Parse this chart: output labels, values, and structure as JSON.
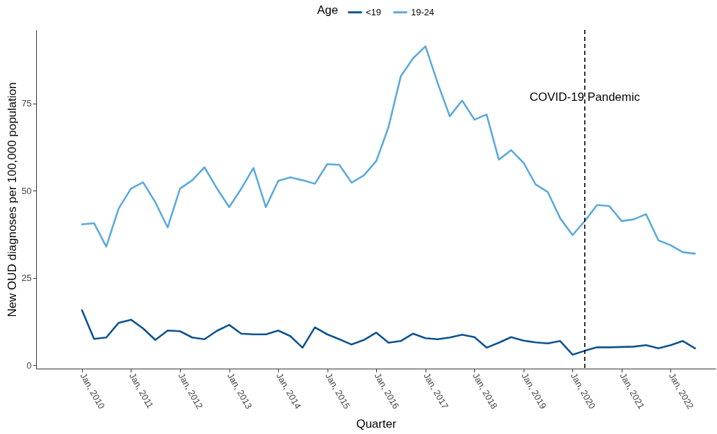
{
  "chart_data": {
    "type": "line",
    "xlabel": "Quarter",
    "ylabel": "New OUD diagnoses per 100,000 population",
    "legend_title": "Age",
    "legend": "top",
    "grid": false,
    "line_style": "solid",
    "marker": "none",
    "x": [
      "2010-01",
      "2010-04",
      "2010-07",
      "2010-10",
      "2011-01",
      "2011-04",
      "2011-07",
      "2011-10",
      "2012-01",
      "2012-04",
      "2012-07",
      "2012-10",
      "2013-01",
      "2013-04",
      "2013-07",
      "2013-10",
      "2014-01",
      "2014-04",
      "2014-07",
      "2014-10",
      "2015-01",
      "2015-04",
      "2015-07",
      "2015-10",
      "2016-01",
      "2016-04",
      "2016-07",
      "2016-10",
      "2017-01",
      "2017-04",
      "2017-07",
      "2017-10",
      "2018-01",
      "2018-04",
      "2018-07",
      "2018-10",
      "2019-01",
      "2019-04",
      "2019-07",
      "2019-10",
      "2020-01",
      "2020-04",
      "2020-07",
      "2020-10",
      "2021-01",
      "2021-04",
      "2021-07",
      "2021-10",
      "2022-01",
      "2022-04",
      "2022-07"
    ],
    "series": [
      {
        "name": "<19",
        "color": "#0c5290",
        "values": [
          15.8,
          7.6,
          8.0,
          12.2,
          13.1,
          10.6,
          7.3,
          10.0,
          9.8,
          8.0,
          7.5,
          9.9,
          11.6,
          9.1,
          8.9,
          8.9,
          10.0,
          8.4,
          5.1,
          10.9,
          8.9,
          7.5,
          6.0,
          7.3,
          9.4,
          6.5,
          7.0,
          9.1,
          7.8,
          7.5,
          8.0,
          8.8,
          8.1,
          5.1,
          6.5,
          8.1,
          7.1,
          6.6,
          6.3,
          7.0,
          3.1,
          4.2,
          5.2,
          5.2,
          5.3,
          5.4,
          5.8,
          4.9,
          5.8,
          7.0,
          4.9
        ]
      },
      {
        "name": "19-24",
        "color": "#5aa9dd",
        "values": [
          40.4,
          40.7,
          34.0,
          44.9,
          50.6,
          52.4,
          46.7,
          39.5,
          50.6,
          53.0,
          56.7,
          50.7,
          45.3,
          50.6,
          56.5,
          45.3,
          52.8,
          53.8,
          53.0,
          52.0,
          57.6,
          57.4,
          52.3,
          54.4,
          58.5,
          68.2,
          82.7,
          87.9,
          91.3,
          80.9,
          71.3,
          75.8,
          70.3,
          71.8,
          58.9,
          61.6,
          58.0,
          51.8,
          49.6,
          42.1,
          37.3,
          41.3,
          45.9,
          45.6,
          41.3,
          41.8,
          43.3,
          35.8,
          34.4,
          32.4,
          32.0
        ]
      }
    ],
    "xlim": [
      "2009-01-25",
      "2022-12-01"
    ],
    "xticks": [
      {
        "value": "2010-01",
        "label": "Jan, 2010"
      },
      {
        "value": "2011-01",
        "label": "Jan, 2011"
      },
      {
        "value": "2012-01",
        "label": "Jan, 2012"
      },
      {
        "value": "2013-01",
        "label": "Jan, 2013"
      },
      {
        "value": "2014-01",
        "label": "Jan, 2014"
      },
      {
        "value": "2015-01",
        "label": "Jan, 2015"
      },
      {
        "value": "2016-01",
        "label": "Jan, 2016"
      },
      {
        "value": "2017-01",
        "label": "Jan, 2017"
      },
      {
        "value": "2018-01",
        "label": "Jan, 2018"
      },
      {
        "value": "2019-01",
        "label": "Jan, 2019"
      },
      {
        "value": "2020-01",
        "label": "Jan, 2020"
      },
      {
        "value": "2021-01",
        "label": "Jan, 2021"
      },
      {
        "value": "2022-01",
        "label": "Jan, 2022"
      }
    ],
    "ylim": [
      -0.9,
      96
    ],
    "yticks": [
      0,
      25,
      50,
      75
    ],
    "ref_lines": [
      {
        "axis": "x",
        "value": "2020-04",
        "label": "COVID-19 Pandemic",
        "line_style": "dashed",
        "color": "#000000"
      }
    ]
  }
}
